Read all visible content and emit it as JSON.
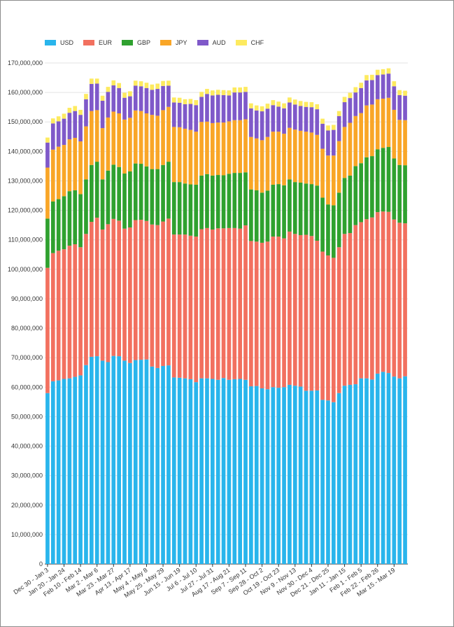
{
  "chart_data": {
    "type": "bar",
    "stacked": true,
    "title": "",
    "xlabel": "",
    "ylabel": "",
    "ylim": [
      0,
      170000000
    ],
    "y_ticks": [
      0,
      10000000,
      20000000,
      30000000,
      40000000,
      50000000,
      60000000,
      70000000,
      80000000,
      90000000,
      100000000,
      110000000,
      120000000,
      130000000,
      140000000,
      150000000,
      160000000,
      170000000
    ],
    "y_tick_labels": [
      "0",
      "10,000,000",
      "20,000,000",
      "30,000,000",
      "40,000,000",
      "50,000,000",
      "60,000,000",
      "70,000,000",
      "80,000,000",
      "90,000,000",
      "100,000,000",
      "110,000,000",
      "120,000,000",
      "130,000,000",
      "140,000,000",
      "150,000,000",
      "160,000,000",
      "170,000,000"
    ],
    "grid": "horizontal",
    "legend_position": "top-left",
    "x_tick_labels": [
      {
        "index": 0,
        "label": "Dec 30 - Jan 3"
      },
      {
        "index": 3,
        "label": "Jan 20 - Jan 24"
      },
      {
        "index": 6,
        "label": "Feb 10 - Feb 14"
      },
      {
        "index": 9,
        "label": "Mar 2 - Mar 6"
      },
      {
        "index": 12,
        "label": "Mar 23 - Mar 27"
      },
      {
        "index": 15,
        "label": "Apr 13 - Apr 17"
      },
      {
        "index": 18,
        "label": "May 4 - May 8"
      },
      {
        "index": 21,
        "label": "May 25 - May 29"
      },
      {
        "index": 24,
        "label": "Jun 15 - Jun 19"
      },
      {
        "index": 27,
        "label": "Jul 6 - Jul 10"
      },
      {
        "index": 30,
        "label": "Jul 27 - Jul 31"
      },
      {
        "index": 33,
        "label": "Aug 17 - Aug 21"
      },
      {
        "index": 36,
        "label": "Sep 7 - Sep 11"
      },
      {
        "index": 39,
        "label": "Sep 28 - Oct 2"
      },
      {
        "index": 42,
        "label": "Oct 19 - Oct 23"
      },
      {
        "index": 45,
        "label": "Nov 9 - Nov 13"
      },
      {
        "index": 48,
        "label": "Nov 30 - Dec 4"
      },
      {
        "index": 51,
        "label": "Dec 21 - Dec 25"
      },
      {
        "index": 54,
        "label": "Jan 11 - Jan 15"
      },
      {
        "index": 57,
        "label": "Feb 1 - Feb 5"
      },
      {
        "index": 60,
        "label": "Feb 22 - Feb 26"
      },
      {
        "index": 63,
        "label": "Mar 15 - Mar 19"
      }
    ],
    "series": [
      {
        "name": "USD",
        "color": "#29b5ec",
        "values": [
          58000000,
          62000000,
          62300000,
          62800000,
          63000000,
          63500000,
          64000000,
          67500000,
          70300000,
          70500000,
          69000000,
          68500000,
          70600000,
          70500000,
          69000000,
          68200000,
          69200000,
          69300000,
          69400000,
          67000000,
          66500000,
          67200000,
          67400000,
          63300000,
          63200000,
          63000000,
          62700000,
          61700000,
          63000000,
          63000000,
          62800000,
          62500000,
          63100000,
          62500000,
          62700000,
          62800000,
          62500000,
          60300000,
          60400000,
          59600000,
          59300000,
          60000000,
          59800000,
          60000000,
          60800000,
          60500000,
          60200000,
          58800000,
          58800000,
          58900000,
          55700000,
          55500000,
          54900000,
          58000000,
          60500000,
          60800000,
          61000000,
          63000000,
          63000000,
          62600000,
          64600000,
          65200000,
          64800000,
          63600000,
          63000000,
          63700000
        ]
      },
      {
        "name": "EUR",
        "color": "#f2705f",
        "values": [
          42500000,
          43500000,
          44000000,
          44000000,
          45000000,
          45000000,
          43500000,
          44500000,
          45800000,
          47000000,
          44500000,
          46800000,
          46500000,
          46000000,
          44800000,
          46000000,
          47500000,
          47500000,
          47000000,
          48200000,
          48500000,
          49000000,
          49800000,
          48500000,
          48600000,
          48800000,
          48700000,
          49400000,
          50600000,
          51000000,
          50700000,
          51400000,
          50800000,
          51500000,
          51300000,
          51000000,
          52400000,
          49300000,
          49000000,
          49400000,
          50100000,
          51100000,
          51300000,
          50500000,
          52000000,
          51500000,
          51400000,
          52900000,
          52500000,
          50800000,
          50300000,
          49200000,
          49000000,
          49500000,
          51500000,
          51500000,
          54000000,
          53000000,
          54000000,
          55000000,
          54800000,
          54400000,
          54700000,
          53300000,
          52800000,
          51900000
        ]
      },
      {
        "name": "GBP",
        "color": "#2fa12f",
        "values": [
          16700000,
          17500000,
          17500000,
          18000000,
          18500000,
          18300000,
          18000000,
          18500000,
          19300000,
          19000000,
          17000000,
          18200000,
          18400000,
          18200000,
          18700000,
          19000000,
          19200000,
          19000000,
          18500000,
          18800000,
          19000000,
          19200000,
          19300000,
          17800000,
          17800000,
          17300000,
          17400000,
          17600000,
          18200000,
          18300000,
          18300000,
          18100000,
          18000000,
          18400000,
          18700000,
          18900000,
          18000000,
          17500000,
          17400000,
          17000000,
          17300000,
          17600000,
          17800000,
          18000000,
          17700000,
          17600000,
          17800000,
          17400000,
          17600000,
          18700000,
          18300000,
          17300000,
          17800000,
          18500000,
          19000000,
          19500000,
          20000000,
          20000000,
          21000000,
          20800000,
          21300000,
          21600000,
          22000000,
          20700000,
          19600000,
          19700000
        ]
      },
      {
        "name": "JPY",
        "color": "#f9a627",
        "values": [
          17300000,
          17600000,
          17800000,
          17400000,
          17600000,
          17800000,
          17900000,
          18000000,
          18300000,
          17500000,
          17400000,
          18000000,
          18000000,
          18200000,
          18300000,
          18200000,
          18000000,
          17900000,
          18000000,
          18400000,
          18100000,
          18600000,
          18600000,
          18700000,
          18600000,
          18600000,
          18500000,
          18000000,
          18200000,
          17800000,
          17800000,
          17800000,
          17900000,
          17800000,
          17900000,
          17900000,
          18000000,
          17800000,
          17600000,
          17800000,
          18200000,
          18000000,
          17800000,
          17500000,
          17500000,
          17800000,
          17600000,
          17600000,
          17500000,
          17200000,
          16600000,
          16600000,
          16900000,
          17500000,
          17300000,
          17900000,
          17000000,
          17000000,
          17600000,
          17500000,
          17000000,
          16700000,
          16700000,
          16500000,
          15300000,
          15300000
        ]
      },
      {
        "name": "AUD",
        "color": "#7f59c9",
        "values": [
          8500000,
          8900000,
          8600000,
          8900000,
          9000000,
          9100000,
          9000000,
          9200000,
          9200000,
          9000000,
          9300000,
          8700000,
          8900000,
          8600000,
          7400000,
          7300000,
          8400000,
          8400000,
          8600000,
          8500000,
          9100000,
          8200000,
          7200000,
          8300000,
          8300000,
          8300000,
          8800000,
          9000000,
          8500000,
          9400000,
          9400000,
          9400000,
          9300000,
          8800000,
          9400000,
          9400000,
          9300000,
          9700000,
          9500000,
          9800000,
          9600000,
          9000000,
          8500000,
          8600000,
          8600000,
          8500000,
          8400000,
          8400000,
          8600000,
          8700000,
          8500000,
          8500000,
          8700000,
          8500000,
          8400000,
          8400000,
          8000000,
          8500000,
          8500000,
          8300000,
          8200000,
          8200000,
          8200000,
          8000000,
          8400000,
          8300000
        ]
      },
      {
        "name": "CHF",
        "color": "#fdea5f",
        "values": [
          1700000,
          1700000,
          1700000,
          1700000,
          1700000,
          1700000,
          1700000,
          1800000,
          1800000,
          1700000,
          1700000,
          1700000,
          1700000,
          1700000,
          1700000,
          1700000,
          1700000,
          1700000,
          1800000,
          1800000,
          1800000,
          1700000,
          1700000,
          1700000,
          1700000,
          1700000,
          1700000,
          1700000,
          1700000,
          1700000,
          1700000,
          1700000,
          1700000,
          1700000,
          1700000,
          1700000,
          1700000,
          1700000,
          1700000,
          1700000,
          1700000,
          1700000,
          1700000,
          1700000,
          1700000,
          1700000,
          1700000,
          1700000,
          1700000,
          1700000,
          1700000,
          1700000,
          1700000,
          1700000,
          1800000,
          1800000,
          1800000,
          1800000,
          1800000,
          1800000,
          1800000,
          1800000,
          1800000,
          1700000,
          1700000,
          1700000
        ]
      }
    ]
  }
}
